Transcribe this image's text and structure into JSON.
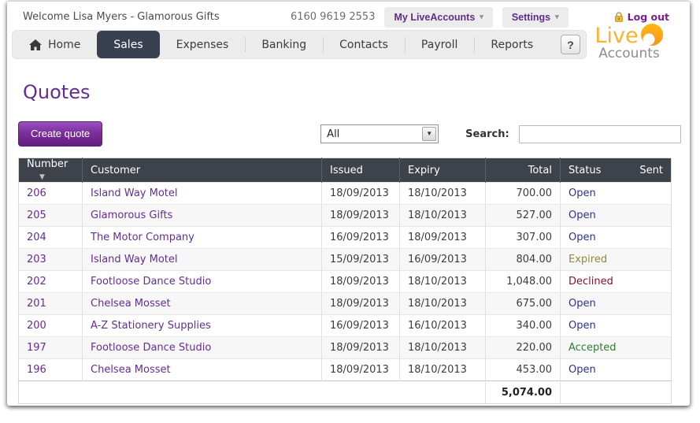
{
  "header": {
    "welcome": "Welcome Lisa Myers - Glamorous Gifts",
    "phone": "6160 9619 2553",
    "my_liveaccounts_label": "My LiveAccounts",
    "settings_label": "Settings",
    "logout_label": "Log out",
    "logo_live": "Live",
    "logo_accounts": "Accounts"
  },
  "nav": {
    "items": [
      {
        "label": "Home"
      },
      {
        "label": "Sales"
      },
      {
        "label": "Expenses"
      },
      {
        "label": "Banking"
      },
      {
        "label": "Contacts"
      },
      {
        "label": "Payroll"
      },
      {
        "label": "Reports"
      }
    ],
    "active": "Sales",
    "help_label": "?"
  },
  "page": {
    "title": "Quotes"
  },
  "toolbar": {
    "create_quote_label": "Create quote",
    "filter_selected": "All",
    "search_label": "Search:",
    "search_value": ""
  },
  "table": {
    "columns": [
      "Number",
      "Customer",
      "Issued",
      "Expiry",
      "Total",
      "Status",
      "Sent"
    ],
    "rows": [
      {
        "number": "206",
        "customer": "Island Way Motel",
        "issued": "18/09/2013",
        "expiry": "18/10/2013",
        "total": "700.00",
        "status": "Open",
        "sent": ""
      },
      {
        "number": "205",
        "customer": "Glamorous Gifts",
        "issued": "18/09/2013",
        "expiry": "18/10/2013",
        "total": "527.00",
        "status": "Open",
        "sent": ""
      },
      {
        "number": "204",
        "customer": "The Motor Company",
        "issued": "16/09/2013",
        "expiry": "18/09/2013",
        "total": "307.00",
        "status": "Open",
        "sent": ""
      },
      {
        "number": "203",
        "customer": "Island Way Motel",
        "issued": "15/09/2013",
        "expiry": "16/09/2013",
        "total": "804.00",
        "status": "Expired",
        "sent": ""
      },
      {
        "number": "202",
        "customer": "Footloose Dance Studio",
        "issued": "18/09/2013",
        "expiry": "18/10/2013",
        "total": "1,048.00",
        "status": "Declined",
        "sent": ""
      },
      {
        "number": "201",
        "customer": "Chelsea Mosset",
        "issued": "18/09/2013",
        "expiry": "18/10/2013",
        "total": "675.00",
        "status": "Open",
        "sent": ""
      },
      {
        "number": "200",
        "customer": "A-Z Stationery Supplies",
        "issued": "16/09/2013",
        "expiry": "16/10/2013",
        "total": "340.00",
        "status": "Open",
        "sent": ""
      },
      {
        "number": "197",
        "customer": "Footloose Dance Studio",
        "issued": "18/09/2013",
        "expiry": "18/10/2013",
        "total": "220.00",
        "status": "Accepted",
        "sent": ""
      },
      {
        "number": "196",
        "customer": "Chelsea Mosset",
        "issued": "18/09/2013",
        "expiry": "18/10/2013",
        "total": "453.00",
        "status": "Open",
        "sent": ""
      }
    ],
    "footer_total": "5,074.00"
  },
  "colors": {
    "brand_purple": "#652d90",
    "header_dark": "#3d424b",
    "logo_orange": "#f7941e",
    "logo_gold": "#f9b233",
    "status_open": "#2f3288",
    "status_expired": "#8f8a3a",
    "status_declined": "#7d1527",
    "status_accepted": "#2e7d32"
  }
}
